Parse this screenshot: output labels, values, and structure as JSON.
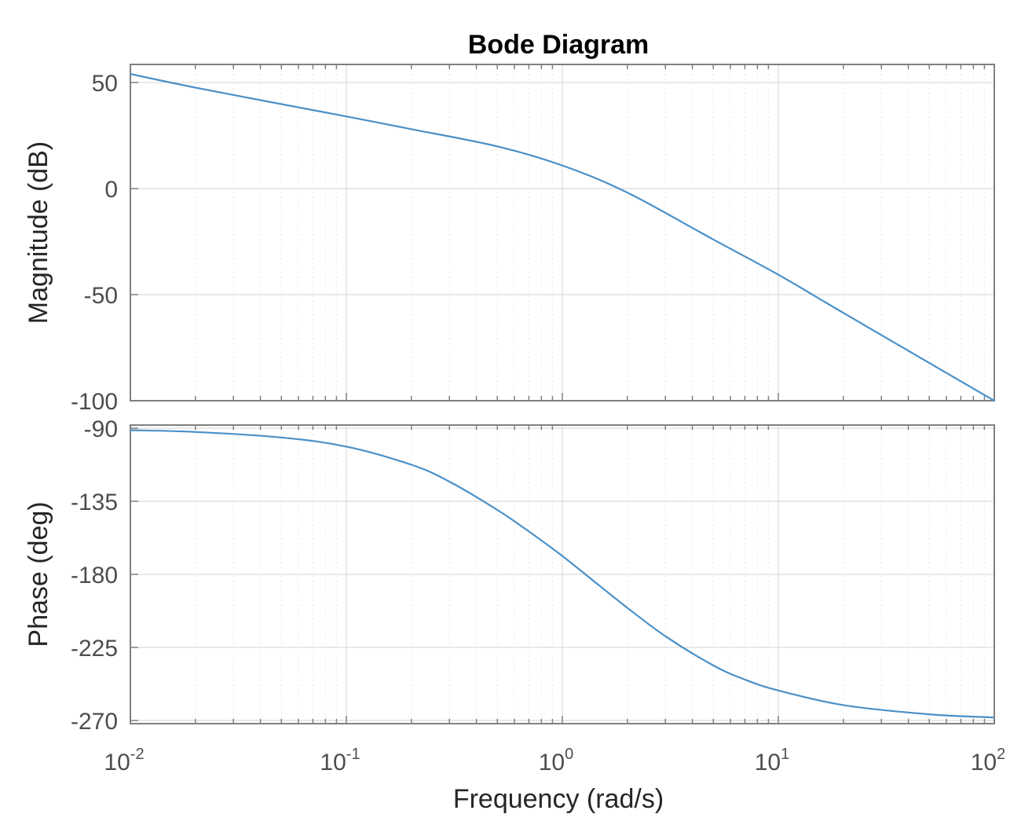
{
  "chart_data": {
    "type": "line",
    "title": "Bode Diagram",
    "xlabel": "Frequency (rad/s)",
    "xscale": "log",
    "xlim": [
      0.01,
      100
    ],
    "x_ticks": [
      {
        "base": "10",
        "exp": "-2"
      },
      {
        "base": "10",
        "exp": "-1"
      },
      {
        "base": "10",
        "exp": "0"
      },
      {
        "base": "10",
        "exp": "1"
      },
      {
        "base": "10",
        "exp": "2"
      }
    ],
    "grid": true,
    "line_color": "#4a90c8",
    "panels": [
      {
        "name": "magnitude",
        "ylabel": "Magnitude (dB)",
        "ylim": [
          -100,
          55
        ],
        "y_ticks": [
          "50",
          "0",
          "-50",
          "-100"
        ],
        "x": [
          0.01,
          0.02,
          0.05,
          0.1,
          0.2,
          0.5,
          1,
          2,
          5,
          10,
          20,
          50,
          100
        ],
        "y": [
          54,
          47.6,
          39.8,
          34.0,
          28.0,
          19.9,
          10.9,
          -1.9,
          -24.0,
          -40.6,
          -58.6,
          -82.2,
          -100
        ]
      },
      {
        "name": "phase",
        "ylabel": "Phase (deg)",
        "ylim": [
          -270,
          -90
        ],
        "y_ticks": [
          "-90",
          "-135",
          "-180",
          "-225",
          "-270"
        ],
        "x": [
          0.01,
          0.02,
          0.05,
          0.1,
          0.2,
          0.3,
          0.5,
          0.7,
          1,
          1.5,
          2,
          3,
          5,
          7,
          10,
          20,
          50,
          100
        ],
        "y": [
          -91.2,
          -92.3,
          -95.7,
          -101.3,
          -112.5,
          -122.9,
          -140.3,
          -153.6,
          -168.7,
          -187.4,
          -200.6,
          -218.1,
          -236.1,
          -244.8,
          -251.5,
          -260.5,
          -266.2,
          -268.1
        ]
      }
    ]
  }
}
